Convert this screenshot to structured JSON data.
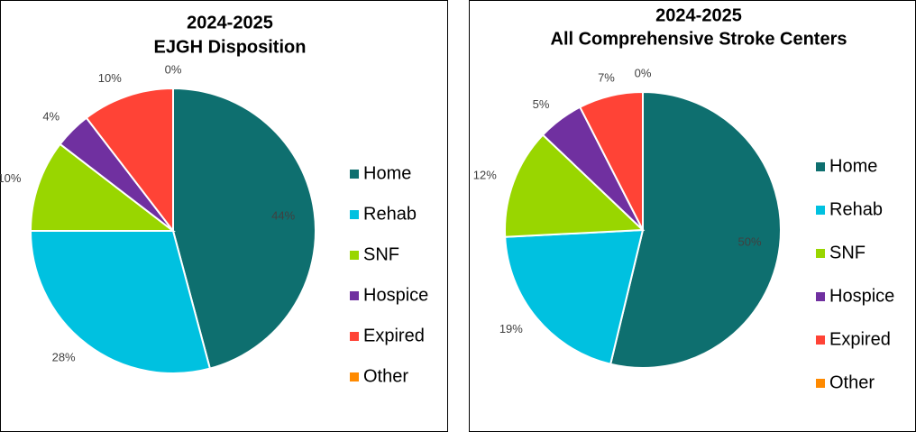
{
  "chart_data": [
    {
      "type": "pie",
      "title": [
        "2024-2025",
        "EJGH Disposition"
      ],
      "categories": [
        "Home",
        "Rehab",
        "SNF",
        "Hospice",
        "Expired",
        "Other"
      ],
      "values": [
        44,
        28,
        10,
        4,
        10,
        0
      ],
      "value_labels": [
        "44%",
        "28%",
        "10%",
        "4%",
        "10%",
        "0%"
      ],
      "colors": [
        "#0e6f6f",
        "#00c1e0",
        "#99d600",
        "#7030a0",
        "#ff4336",
        "#ff8a00"
      ],
      "legend": "right"
    },
    {
      "type": "pie",
      "title": [
        "2024-2025",
        "All Comprehensive Stroke Centers"
      ],
      "categories": [
        "Home",
        "Rehab",
        "SNF",
        "Hospice",
        "Expired",
        "Other"
      ],
      "values": [
        50,
        19,
        12,
        5,
        7,
        0
      ],
      "value_labels": [
        "50%",
        "19%",
        "12%",
        "5%",
        "7%",
        "0%"
      ],
      "colors": [
        "#0e6f6f",
        "#00c1e0",
        "#99d600",
        "#7030a0",
        "#ff4336",
        "#ff8a00"
      ],
      "legend": "right"
    }
  ]
}
